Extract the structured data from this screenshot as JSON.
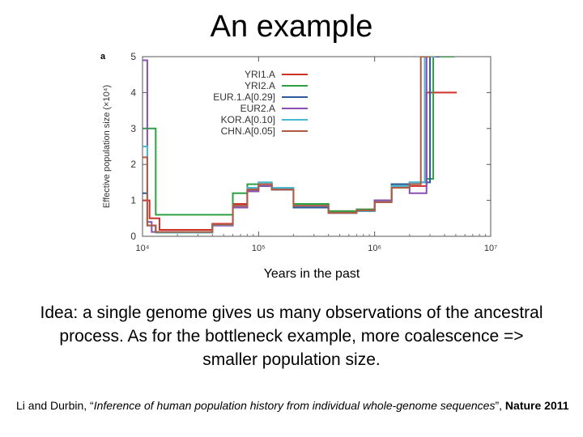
{
  "slide": {
    "title": "An example",
    "xlabel_caption": "Years in the past",
    "idea_text": "Idea: a single genome gives us many observations of the ancestral process.  As for the bottleneck example, more coalescence => smaller population size.",
    "reference": {
      "authors": "Li and Durbin, “",
      "title": "Inference of human population history from individual whole-genome sequences",
      "close": "”, ",
      "journal": "Nature 2011"
    }
  },
  "chart_data": {
    "type": "line",
    "panel_label": "a",
    "ylabel": "Effective population size (×10⁴)",
    "x_scale": "log",
    "xlim": [
      10000,
      10000000
    ],
    "ylim": [
      0,
      5
    ],
    "x_ticks": [
      {
        "value": 10000,
        "label": "10⁴"
      },
      {
        "value": 100000,
        "label": "10⁵"
      },
      {
        "value": 1000000,
        "label": "10⁶"
      },
      {
        "value": 10000000,
        "label": "10⁷"
      }
    ],
    "y_ticks": [
      0,
      1,
      2,
      3,
      4,
      5
    ],
    "legend_position": "top-right",
    "series": [
      {
        "name": "YRI1.A",
        "color": "#d0302a",
        "x": [
          10000,
          11500,
          14000,
          22000,
          40000,
          60000,
          80000,
          100000,
          130000,
          200000,
          400000,
          700000,
          1000000,
          1400000,
          2000000,
          2800000,
          3300000,
          4200000
        ],
        "y": [
          1.0,
          0.5,
          0.18,
          0.18,
          0.35,
          0.9,
          1.3,
          1.4,
          1.3,
          0.9,
          0.7,
          0.75,
          1.0,
          1.4,
          1.4,
          4.0,
          4.0,
          4.0
        ]
      },
      {
        "name": "YRI2.A",
        "color": "#2ea043",
        "x": [
          10000,
          11000,
          13000,
          22000,
          40000,
          60000,
          80000,
          100000,
          130000,
          200000,
          400000,
          700000,
          1000000,
          1400000,
          2000000,
          2800000,
          3200000,
          4000000
        ],
        "y": [
          3.0,
          3.0,
          0.6,
          0.6,
          0.6,
          1.2,
          1.45,
          1.5,
          1.3,
          0.9,
          0.7,
          0.75,
          1.0,
          1.45,
          1.5,
          1.6,
          5.0,
          5.0
        ]
      },
      {
        "name": "EUR.1.A[0.29]",
        "color": "#2b5a9c",
        "x": [
          10000,
          11000,
          13000,
          22000,
          40000,
          60000,
          80000,
          100000,
          130000,
          200000,
          400000,
          700000,
          1000000,
          1400000,
          2000000,
          3000000
        ],
        "y": [
          1.2,
          0.3,
          0.12,
          0.12,
          0.3,
          0.85,
          1.3,
          1.4,
          1.3,
          0.8,
          0.65,
          0.7,
          1.0,
          1.45,
          1.5,
          5.0
        ]
      },
      {
        "name": "EUR2.A",
        "color": "#8a4fb0",
        "x": [
          10000,
          11000,
          12000,
          20000,
          40000,
          60000,
          80000,
          100000,
          130000,
          200000,
          400000,
          700000,
          1000000,
          1400000,
          2000000,
          2800000
        ],
        "y": [
          4.9,
          0.4,
          0.12,
          0.1,
          0.3,
          0.8,
          1.25,
          1.4,
          1.3,
          0.85,
          0.65,
          0.7,
          1.0,
          1.35,
          1.2,
          5.0
        ]
      },
      {
        "name": "KOR.A[0.10]",
        "color": "#4ab8d0",
        "x": [
          10000,
          11000,
          13000,
          22000,
          40000,
          60000,
          80000,
          100000,
          130000,
          200000,
          400000,
          700000,
          1000000,
          1400000,
          2000000,
          2700000
        ],
        "y": [
          2.5,
          0.3,
          0.1,
          0.1,
          0.32,
          0.85,
          1.35,
          1.5,
          1.35,
          0.85,
          0.65,
          0.7,
          0.95,
          1.4,
          1.5,
          5.0
        ]
      },
      {
        "name": "CHN.A[0.05]",
        "color": "#b05a40",
        "x": [
          10000,
          11000,
          13000,
          22000,
          40000,
          60000,
          80000,
          100000,
          130000,
          200000,
          400000,
          700000,
          1000000,
          1400000,
          2000000,
          2500000
        ],
        "y": [
          2.2,
          0.3,
          0.12,
          0.12,
          0.33,
          0.85,
          1.3,
          1.45,
          1.3,
          0.85,
          0.65,
          0.72,
          0.95,
          1.35,
          1.45,
          5.0
        ]
      }
    ]
  }
}
